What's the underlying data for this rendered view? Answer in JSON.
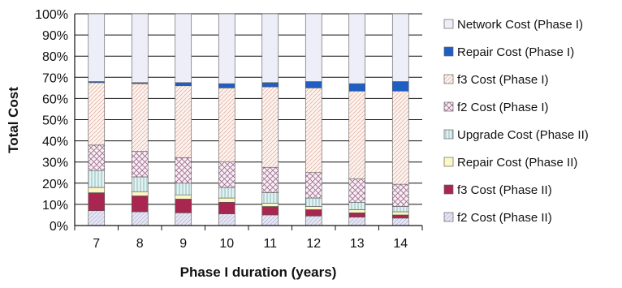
{
  "chart_data": {
    "type": "bar",
    "stacked": true,
    "normalized": true,
    "xlabel": "Phase I duration (years)",
    "ylabel": "Total Cost",
    "categories": [
      "7",
      "8",
      "9",
      "10",
      "11",
      "12",
      "13",
      "14"
    ],
    "y_ticks": [
      "0%",
      "10%",
      "20%",
      "30%",
      "40%",
      "50%",
      "60%",
      "70%",
      "80%",
      "90%",
      "100%"
    ],
    "ylim": [
      0,
      100
    ],
    "grid": "horizontal",
    "legend_position": "right",
    "series": [
      {
        "name": "f2 Cost (Phase II)",
        "fill": "#dcdcf0",
        "pattern": "hatch-light",
        "values": [
          7,
          6.5,
          6,
          5.5,
          5,
          4.5,
          4,
          3.5
        ]
      },
      {
        "name": "f3 Cost (Phase II)",
        "fill": "#a8264f",
        "pattern": "solid",
        "values": [
          8.5,
          7.5,
          6.5,
          5.5,
          4,
          3,
          2,
          1.5
        ]
      },
      {
        "name": "Repair Cost (Phase II)",
        "fill": "#fcf7c4",
        "pattern": "solid",
        "values": [
          2.5,
          2,
          2,
          2,
          1.5,
          1.5,
          1.5,
          1.5
        ]
      },
      {
        "name": "Upgrade Cost (Phase II)",
        "fill": "#dcefee",
        "pattern": "vertical",
        "values": [
          8,
          7,
          5.5,
          5,
          5,
          4,
          3.5,
          2.5
        ]
      },
      {
        "name": "f2 Cost (Phase I)",
        "fill": "#f4e8f0",
        "pattern": "crosshatch",
        "values": [
          12,
          12,
          12,
          12,
          12,
          12,
          11,
          10.5
        ]
      },
      {
        "name": "f3 Cost (Phase I)",
        "fill": "#fbefea",
        "pattern": "diagonal",
        "values": [
          29.5,
          32,
          34,
          35,
          38,
          40,
          41.5,
          44
        ]
      },
      {
        "name": "Repair Cost (Phase I)",
        "fill": "#1f5fc4",
        "pattern": "solid",
        "values": [
          0.5,
          0.5,
          1.5,
          2,
          2,
          3,
          3.5,
          4.5
        ]
      },
      {
        "name": "Network Cost (Phase I)",
        "fill": "#eeeef8",
        "pattern": "solid",
        "values": [
          32,
          32.5,
          32.5,
          33,
          32.5,
          32,
          33,
          32
        ]
      }
    ],
    "legend_order": [
      "Network Cost (Phase I)",
      "Repair Cost (Phase I)",
      "f3 Cost (Phase I)",
      "f2 Cost (Phase I)",
      "Upgrade Cost (Phase II)",
      "Repair Cost (Phase II)",
      "f3 Cost (Phase II)",
      "f2 Cost (Phase II)"
    ]
  }
}
